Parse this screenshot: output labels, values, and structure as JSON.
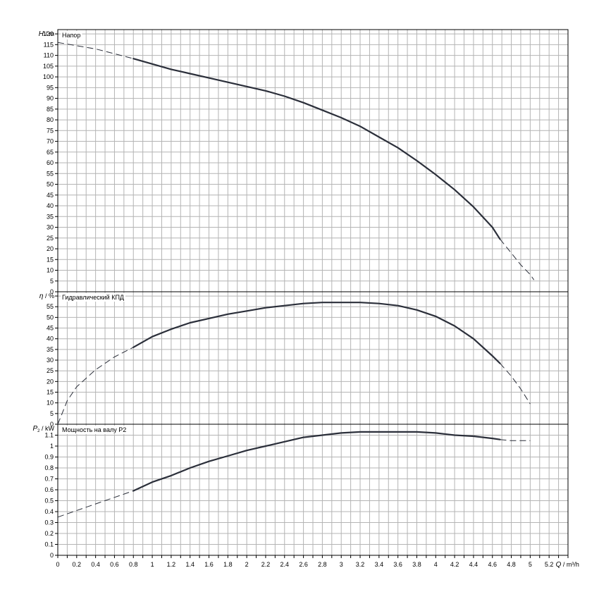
{
  "chart_data": {
    "type": "line",
    "x_axis": {
      "label_var": "Q",
      "label_unit": "m³/h",
      "min": 0,
      "max": 5.4,
      "ticks": [
        "0",
        "0.2",
        "0.4",
        "0.6",
        "0.8",
        "1",
        "1.2",
        "1.4",
        "1.6",
        "1.8",
        "2",
        "2.2",
        "2.4",
        "2.6",
        "2.8",
        "3",
        "3.2",
        "3.4",
        "3.6",
        "3.8",
        "4",
        "4.2",
        "4.4",
        "4.6",
        "4.8",
        "5",
        "5.2"
      ]
    },
    "panels": [
      {
        "id": "head",
        "title": "Напор",
        "y_label_var": "H",
        "y_label_unit": "m",
        "ymin": 0,
        "ymax": 122,
        "yticks": [
          "0",
          "5",
          "10",
          "15",
          "20",
          "25",
          "30",
          "35",
          "40",
          "45",
          "50",
          "55",
          "60",
          "65",
          "70",
          "75",
          "80",
          "85",
          "90",
          "95",
          "100",
          "105",
          "110",
          "115",
          "120"
        ],
        "series": [
          {
            "style": "dashed",
            "x": [
              0,
              0.4,
              0.8
            ],
            "y": [
              116,
              113,
              108.5
            ]
          },
          {
            "style": "solid",
            "x": [
              0.8,
              1.0,
              1.2,
              1.4,
              1.6,
              1.8,
              2.0,
              2.2,
              2.4,
              2.6,
              2.8,
              3.0,
              3.2,
              3.4,
              3.6,
              3.8,
              4.0,
              4.2,
              4.4,
              4.6,
              4.68
            ],
            "y": [
              108.5,
              106,
              103.5,
              101.5,
              99.5,
              97.5,
              95.5,
              93.5,
              91,
              88,
              84.5,
              81,
              77,
              72,
              67,
              61,
              54.5,
              47.5,
              39.5,
              30,
              24.5
            ]
          },
          {
            "style": "dashed",
            "x": [
              4.68,
              4.8,
              4.9,
              5.0,
              5.04
            ],
            "y": [
              24.5,
              18,
              12.5,
              8,
              5.5
            ]
          }
        ]
      },
      {
        "id": "efficiency",
        "title": "Гидравлический КПД",
        "y_label_var": "η",
        "y_label_unit": "%",
        "ymin": 0,
        "ymax": 62,
        "yticks": [
          "0",
          "5",
          "10",
          "15",
          "20",
          "25",
          "30",
          "35",
          "40",
          "45",
          "50",
          "55"
        ],
        "series": [
          {
            "style": "dashed",
            "x": [
              0,
              0.1,
              0.2,
              0.4,
              0.6,
              0.8
            ],
            "y": [
              0,
              11,
              17.5,
              25.5,
              31.5,
              36
            ]
          },
          {
            "style": "solid",
            "x": [
              0.8,
              1.0,
              1.2,
              1.4,
              1.6,
              1.8,
              2.0,
              2.2,
              2.4,
              2.6,
              2.8,
              3.0,
              3.2,
              3.4,
              3.6,
              3.8,
              4.0,
              4.2,
              4.4,
              4.6,
              4.68
            ],
            "y": [
              36,
              41,
              44.5,
              47.5,
              49.5,
              51.5,
              53,
              54.5,
              55.5,
              56.5,
              57,
              57,
              57,
              56.5,
              55.5,
              53.5,
              50.5,
              46,
              40,
              32,
              28.5
            ]
          },
          {
            "style": "dashed",
            "x": [
              4.68,
              4.8,
              4.9,
              5.0
            ],
            "y": [
              28.5,
              22.5,
              16.5,
              9.5
            ]
          }
        ]
      },
      {
        "id": "power",
        "title": "Мощность на валу P2",
        "y_label_var": "P",
        "y_label_sub": "2",
        "y_label_unit": "kW",
        "ymin": 0,
        "ymax": 1.2,
        "yticks": [
          "0",
          "0.1",
          "0.2",
          "0.3",
          "0.4",
          "0.5",
          "0.6",
          "0.7",
          "0.8",
          "0.9",
          "1",
          "1.1"
        ],
        "series": [
          {
            "style": "dashed",
            "x": [
              0,
              0.4,
              0.8
            ],
            "y": [
              0.35,
              0.47,
              0.59
            ]
          },
          {
            "style": "solid",
            "x": [
              0.8,
              1.0,
              1.2,
              1.4,
              1.6,
              1.8,
              2.0,
              2.2,
              2.4,
              2.6,
              2.8,
              3.0,
              3.2,
              3.4,
              3.6,
              3.8,
              4.0,
              4.2,
              4.4,
              4.6,
              4.68
            ],
            "y": [
              0.59,
              0.67,
              0.73,
              0.8,
              0.86,
              0.91,
              0.96,
              1.0,
              1.04,
              1.08,
              1.1,
              1.12,
              1.13,
              1.13,
              1.13,
              1.13,
              1.12,
              1.1,
              1.09,
              1.07,
              1.06
            ]
          },
          {
            "style": "dashed",
            "x": [
              4.68,
              4.8,
              4.9,
              5.0
            ],
            "y": [
              1.06,
              1.05,
              1.05,
              1.05
            ]
          }
        ]
      }
    ]
  }
}
